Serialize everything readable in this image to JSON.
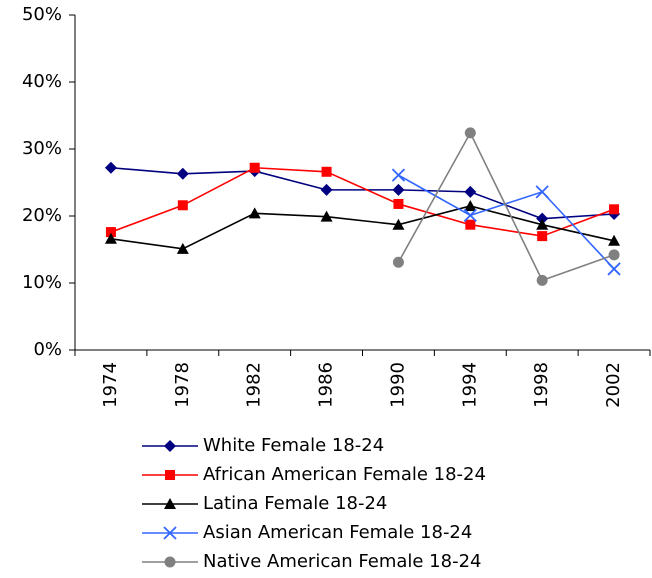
{
  "chart_data": {
    "type": "line",
    "categories": [
      "1974",
      "1978",
      "1982",
      "1986",
      "1990",
      "1994",
      "1998",
      "2002"
    ],
    "series": [
      {
        "name": "White Female 18-24",
        "color": "#000080",
        "marker": "diamond",
        "values": [
          27.2,
          26.3,
          26.7,
          23.9,
          23.9,
          23.6,
          19.6,
          20.3
        ]
      },
      {
        "name": "African American Female 18-24",
        "color": "#ff0000",
        "marker": "square",
        "values": [
          17.6,
          21.6,
          27.2,
          26.6,
          21.8,
          18.7,
          17.0,
          21.0
        ]
      },
      {
        "name": "Latina Female 18-24",
        "color": "#000000",
        "marker": "triangle",
        "values": [
          16.6,
          15.1,
          20.4,
          19.9,
          18.7,
          21.5,
          18.7,
          16.3
        ]
      },
      {
        "name": "Asian American Female 18-24",
        "color": "#3366ff",
        "marker": "x",
        "values": [
          null,
          null,
          null,
          null,
          26.1,
          20.1,
          23.6,
          12.1
        ]
      },
      {
        "name": "Native American Female 18-24",
        "color": "#808080",
        "marker": "circle",
        "values": [
          null,
          null,
          null,
          null,
          13.1,
          32.4,
          10.4,
          14.2
        ]
      }
    ],
    "ylim": [
      0,
      50
    ],
    "yticks": [
      {
        "value": 0,
        "label": "0%"
      },
      {
        "value": 10,
        "label": "10%"
      },
      {
        "value": 20,
        "label": "20%"
      },
      {
        "value": 30,
        "label": "30%"
      },
      {
        "value": 40,
        "label": "40%"
      },
      {
        "value": 50,
        "label": "50%"
      }
    ],
    "grid": false,
    "legend": "bottom"
  }
}
